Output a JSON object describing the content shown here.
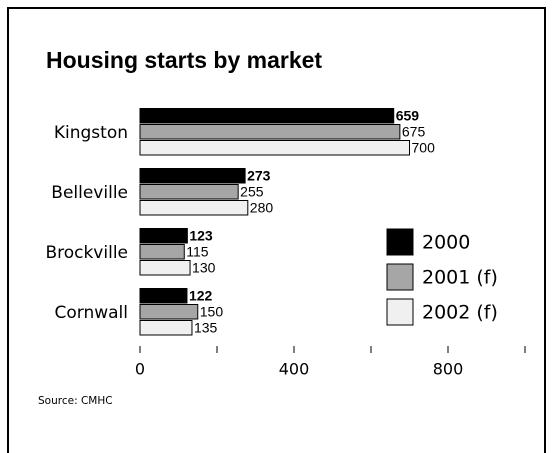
{
  "chart_data": {
    "type": "bar",
    "orientation": "horizontal",
    "title": "Housing starts by market",
    "categories": [
      "Kingston",
      "Belleville",
      "Brockville",
      "Cornwall"
    ],
    "series": [
      {
        "name": "2000",
        "color": "#000000",
        "values": [
          659,
          273,
          123,
          122
        ]
      },
      {
        "name": "2001 (f)",
        "color": "#a6a6a6",
        "values": [
          675,
          255,
          115,
          150
        ]
      },
      {
        "name": "2002 (f)",
        "color": "#f0f0f0",
        "values": [
          700,
          280,
          130,
          135
        ]
      }
    ],
    "xlim": [
      0,
      1000
    ],
    "xticks": [
      0,
      400,
      800
    ],
    "xminorticks": [
      200,
      600,
      1000
    ],
    "legend": "lower right",
    "source": "Source: CMHC"
  }
}
